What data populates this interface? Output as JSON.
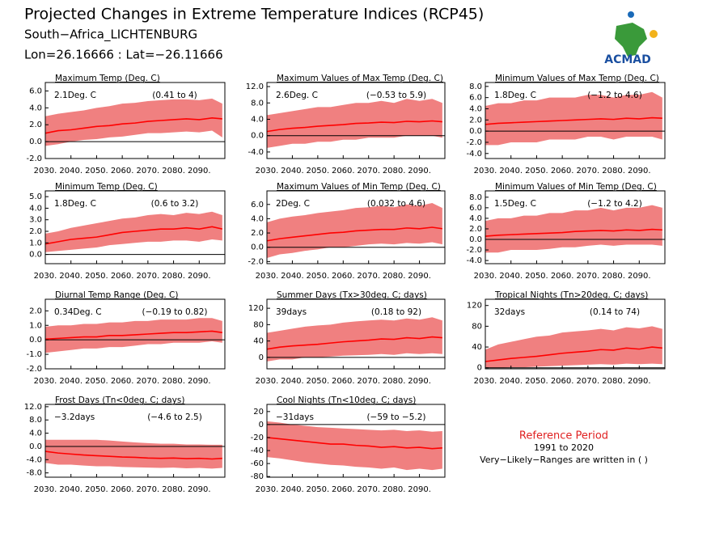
{
  "header": {
    "title": "Projected Changes in Extreme Temperature Indices (RCP45)",
    "subtitle": "South−Africa_LICHTENBURG",
    "location": "Lon=26.16666 : Lat=−26.11666",
    "logo": "ACMAD"
  },
  "notes": {
    "reference_title": "Reference Period",
    "reference_years": "1991 to 2020",
    "ranges_note": "Very−Likely−Ranges are written in ( )"
  },
  "chart_data": [
    {
      "type": "line",
      "title": "Maximum Temp (Deg. C)",
      "annotation": "2.1Deg. C",
      "range_label": "(0.41 to 4)",
      "x": [
        2030,
        2035,
        2040,
        2045,
        2050,
        2055,
        2060,
        2065,
        2070,
        2075,
        2080,
        2085,
        2090,
        2095,
        2099
      ],
      "values": [
        1.0,
        1.3,
        1.4,
        1.6,
        1.8,
        1.9,
        2.1,
        2.2,
        2.4,
        2.5,
        2.6,
        2.7,
        2.6,
        2.8,
        2.7
      ],
      "band": {
        "lower": [
          -0.5,
          -0.3,
          0,
          0.2,
          0.3,
          0.5,
          0.6,
          0.8,
          1.0,
          1.0,
          1.1,
          1.2,
          1.1,
          1.3,
          0.5
        ],
        "upper": [
          3.0,
          3.3,
          3.5,
          3.7,
          4.0,
          4.2,
          4.5,
          4.6,
          4.8,
          4.9,
          5.0,
          5.0,
          4.9,
          5.1,
          4.5
        ]
      },
      "xlim": [
        2030,
        2100
      ],
      "ylim": [
        -2,
        7
      ],
      "yticks": [
        {
          "value": -2,
          "label": "-2.0"
        },
        {
          "value": 0,
          "label": "0.0"
        },
        {
          "value": 2,
          "label": "2.0"
        },
        {
          "value": 4,
          "label": "4.0"
        },
        {
          "value": 6,
          "label": "6.0"
        }
      ]
    },
    {
      "type": "line",
      "title": "Maximum Values of Max Temp (Deg. C)",
      "annotation": "2.6Deg. C",
      "range_label": "(−0.53 to 5.9)",
      "x": [
        2030,
        2035,
        2040,
        2045,
        2050,
        2055,
        2060,
        2065,
        2070,
        2075,
        2080,
        2085,
        2090,
        2095,
        2099
      ],
      "values": [
        1.0,
        1.5,
        1.8,
        2.0,
        2.3,
        2.5,
        2.7,
        3.0,
        3.1,
        3.3,
        3.2,
        3.5,
        3.4,
        3.6,
        3.4
      ],
      "band": {
        "lower": [
          -3,
          -2.5,
          -2,
          -2,
          -1.5,
          -1.5,
          -1,
          -1,
          -0.5,
          -0.5,
          -0.5,
          0,
          0,
          0,
          -0.5
        ],
        "upper": [
          5,
          5.5,
          6,
          6.5,
          7,
          7,
          7.5,
          8,
          8,
          8.5,
          8,
          9,
          8.5,
          9,
          8
        ]
      },
      "xlim": [
        2030,
        2100
      ],
      "ylim": [
        -5.6,
        13
      ],
      "yticks": [
        {
          "value": -4,
          "label": "-4.0"
        },
        {
          "value": 0,
          "label": "0.0"
        },
        {
          "value": 4,
          "label": "4.0"
        },
        {
          "value": 8,
          "label": "8.0"
        },
        {
          "value": 12,
          "label": "12.0"
        }
      ]
    },
    {
      "type": "line",
      "title": "Minimum Values of Max Temp (Deg. C)",
      "annotation": "1.8Deg. C",
      "range_label": "(−1.2 to 4.6)",
      "x": [
        2030,
        2035,
        2040,
        2045,
        2050,
        2055,
        2060,
        2065,
        2070,
        2075,
        2080,
        2085,
        2090,
        2095,
        2099
      ],
      "values": [
        1.2,
        1.4,
        1.5,
        1.6,
        1.7,
        1.8,
        1.9,
        2.0,
        2.1,
        2.2,
        2.1,
        2.3,
        2.2,
        2.4,
        2.3
      ],
      "band": {
        "lower": [
          -2.5,
          -2.5,
          -2,
          -2,
          -2,
          -1.5,
          -1.5,
          -1.5,
          -1,
          -1,
          -1.5,
          -1,
          -1,
          -1,
          -1.5
        ],
        "upper": [
          4.5,
          5,
          5,
          5.5,
          5.5,
          6,
          6,
          6,
          6.5,
          6.5,
          6,
          6.5,
          6.5,
          7,
          6
        ]
      },
      "xlim": [
        2030,
        2100
      ],
      "ylim": [
        -4.9,
        8.7
      ],
      "yticks": [
        {
          "value": -4,
          "label": "-4.0"
        },
        {
          "value": -2,
          "label": "-2.0"
        },
        {
          "value": 0,
          "label": "0.0"
        },
        {
          "value": 2,
          "label": "2.0"
        },
        {
          "value": 4,
          "label": "4.0"
        },
        {
          "value": 6,
          "label": "6.0"
        },
        {
          "value": 8,
          "label": "8.0"
        }
      ]
    },
    {
      "type": "line",
      "title": "Minimum Temp (Deg. C)",
      "annotation": "1.8Deg. C",
      "range_label": "(0.6 to 3.2)",
      "x": [
        2030,
        2035,
        2040,
        2045,
        2050,
        2055,
        2060,
        2065,
        2070,
        2075,
        2080,
        2085,
        2090,
        2095,
        2099
      ],
      "values": [
        0.9,
        1.1,
        1.3,
        1.4,
        1.5,
        1.7,
        1.9,
        2.0,
        2.1,
        2.2,
        2.2,
        2.3,
        2.2,
        2.4,
        2.2
      ],
      "band": {
        "lower": [
          0.2,
          0.3,
          0.4,
          0.5,
          0.6,
          0.8,
          0.9,
          1.0,
          1.1,
          1.1,
          1.2,
          1.2,
          1.1,
          1.3,
          1.2
        ],
        "upper": [
          1.8,
          2.0,
          2.3,
          2.5,
          2.7,
          2.9,
          3.1,
          3.2,
          3.4,
          3.5,
          3.4,
          3.6,
          3.5,
          3.7,
          3.4
        ]
      },
      "xlim": [
        2030,
        2100
      ],
      "ylim": [
        -0.8,
        5.5
      ],
      "yticks": [
        {
          "value": 0,
          "label": "0.0"
        },
        {
          "value": 1,
          "label": "1.0"
        },
        {
          "value": 2,
          "label": "2.0"
        },
        {
          "value": 3,
          "label": "3.0"
        },
        {
          "value": 4,
          "label": "4.0"
        },
        {
          "value": 5,
          "label": "5.0"
        }
      ]
    },
    {
      "type": "line",
      "title": "Maximum Values of Min Temp (Deg. C)",
      "annotation": "2Deg. C",
      "range_label": "(0.032 to 4.6)",
      "x": [
        2030,
        2035,
        2040,
        2045,
        2050,
        2055,
        2060,
        2065,
        2070,
        2075,
        2080,
        2085,
        2090,
        2095,
        2099
      ],
      "values": [
        0.9,
        1.2,
        1.4,
        1.6,
        1.8,
        2.0,
        2.1,
        2.3,
        2.4,
        2.5,
        2.5,
        2.7,
        2.6,
        2.8,
        2.6
      ],
      "band": {
        "lower": [
          -1.5,
          -1,
          -0.8,
          -0.5,
          -0.3,
          0,
          0,
          0.2,
          0.4,
          0.5,
          0.4,
          0.6,
          0.5,
          0.7,
          0.4
        ],
        "upper": [
          3.5,
          4,
          4.3,
          4.5,
          4.8,
          5,
          5.2,
          5.5,
          5.6,
          5.8,
          5.6,
          6,
          5.8,
          6.2,
          5.5
        ]
      },
      "xlim": [
        2030,
        2100
      ],
      "ylim": [
        -2.3,
        7.9
      ],
      "yticks": [
        {
          "value": -2,
          "label": "-2.0"
        },
        {
          "value": 0,
          "label": "0.0"
        },
        {
          "value": 2,
          "label": "2.0"
        },
        {
          "value": 4,
          "label": "4.0"
        },
        {
          "value": 6,
          "label": "6.0"
        }
      ]
    },
    {
      "type": "line",
      "title": "Minimum Values of Min Temp (Deg. C)",
      "annotation": "1.5Deg. C",
      "range_label": "(−1.2 to 4.2)",
      "x": [
        2030,
        2035,
        2040,
        2045,
        2050,
        2055,
        2060,
        2065,
        2070,
        2075,
        2080,
        2085,
        2090,
        2095,
        2099
      ],
      "values": [
        0.6,
        0.8,
        0.9,
        1.0,
        1.1,
        1.2,
        1.3,
        1.5,
        1.6,
        1.7,
        1.6,
        1.8,
        1.7,
        1.9,
        1.8
      ],
      "band": {
        "lower": [
          -2.5,
          -2.5,
          -2,
          -2,
          -2,
          -1.8,
          -1.5,
          -1.5,
          -1.2,
          -1,
          -1.2,
          -1,
          -1,
          -1,
          -1.2
        ],
        "upper": [
          3.5,
          4,
          4,
          4.5,
          4.5,
          5,
          5,
          5.5,
          5.5,
          6,
          5.5,
          6,
          6,
          6.5,
          6
        ]
      },
      "xlim": [
        2030,
        2100
      ],
      "ylim": [
        -4.6,
        9.2
      ],
      "yticks": [
        {
          "value": -4,
          "label": "-4.0"
        },
        {
          "value": -2,
          "label": "-2.0"
        },
        {
          "value": 0,
          "label": "0.0"
        },
        {
          "value": 2,
          "label": "2.0"
        },
        {
          "value": 4,
          "label": "4.0"
        },
        {
          "value": 6,
          "label": "6.0"
        },
        {
          "value": 8,
          "label": "8.0"
        }
      ]
    },
    {
      "type": "line",
      "title": "Diurnal Temp Range (Deg. C)",
      "annotation": "0.34Deg. C",
      "range_label": "(−0.19 to 0.82)",
      "x": [
        2030,
        2035,
        2040,
        2045,
        2050,
        2055,
        2060,
        2065,
        2070,
        2075,
        2080,
        2085,
        2090,
        2095,
        2099
      ],
      "values": [
        0.05,
        0.1,
        0.15,
        0.2,
        0.2,
        0.3,
        0.3,
        0.35,
        0.4,
        0.45,
        0.5,
        0.5,
        0.55,
        0.6,
        0.5
      ],
      "band": {
        "lower": [
          -0.9,
          -0.8,
          -0.7,
          -0.6,
          -0.6,
          -0.5,
          -0.5,
          -0.4,
          -0.3,
          -0.3,
          -0.2,
          -0.2,
          -0.2,
          -0.1,
          -0.2
        ],
        "upper": [
          0.9,
          1.0,
          1.0,
          1.1,
          1.1,
          1.2,
          1.2,
          1.3,
          1.3,
          1.4,
          1.4,
          1.4,
          1.5,
          1.5,
          1.3
        ]
      },
      "xlim": [
        2030,
        2100
      ],
      "ylim": [
        -2,
        2.8
      ],
      "yticks": [
        {
          "value": -2,
          "label": "-2.0"
        },
        {
          "value": -1,
          "label": "-1.0"
        },
        {
          "value": 0,
          "label": "0.0"
        },
        {
          "value": 1,
          "label": "1.0"
        },
        {
          "value": 2,
          "label": "2.0"
        }
      ]
    },
    {
      "type": "line",
      "title": "Summer Days (Tx>30deg. C; days)",
      "annotation": "39days",
      "range_label": "(0.18 to 92)",
      "x": [
        2030,
        2035,
        2040,
        2045,
        2050,
        2055,
        2060,
        2065,
        2070,
        2075,
        2080,
        2085,
        2090,
        2095,
        2099
      ],
      "values": [
        20,
        25,
        28,
        30,
        32,
        35,
        38,
        40,
        42,
        45,
        44,
        48,
        46,
        50,
        48
      ],
      "band": {
        "lower": [
          -10,
          -5,
          -5,
          0,
          0,
          2,
          4,
          5,
          6,
          8,
          6,
          10,
          8,
          10,
          8
        ],
        "upper": [
          60,
          65,
          70,
          75,
          78,
          80,
          85,
          88,
          90,
          92,
          90,
          95,
          92,
          98,
          90
        ]
      },
      "xlim": [
        2030,
        2100
      ],
      "ylim": [
        -28,
        142
      ],
      "yticks": [
        0,
        40,
        80,
        120
      ]
    },
    {
      "type": "line",
      "title": "Tropical Nights (Tn>20deg. C; days)",
      "annotation": "32days",
      "range_label": "(0.14 to 74)",
      "x": [
        2030,
        2035,
        2040,
        2045,
        2050,
        2055,
        2060,
        2065,
        2070,
        2075,
        2080,
        2085,
        2090,
        2095,
        2099
      ],
      "values": [
        12,
        15,
        18,
        20,
        22,
        25,
        28,
        30,
        32,
        35,
        34,
        38,
        36,
        40,
        38
      ],
      "band": {
        "lower": [
          0,
          0,
          1,
          1,
          2,
          3,
          4,
          5,
          6,
          7,
          6,
          8,
          7,
          8,
          7
        ],
        "upper": [
          35,
          45,
          50,
          55,
          60,
          62,
          68,
          70,
          72,
          75,
          72,
          78,
          76,
          80,
          75
        ]
      },
      "xlim": [
        2030,
        2100
      ],
      "ylim": [
        -2,
        132
      ],
      "yticks": [
        0,
        40,
        80,
        120
      ]
    },
    {
      "type": "line",
      "title": "Frost Days (Tn<0deg. C; days)",
      "annotation": "−3.2days",
      "range_label": "(−4.6 to 2.5)",
      "x": [
        2030,
        2035,
        2040,
        2045,
        2050,
        2055,
        2060,
        2065,
        2070,
        2075,
        2080,
        2085,
        2090,
        2095,
        2099
      ],
      "values": [
        -1.5,
        -2,
        -2.3,
        -2.6,
        -2.8,
        -3,
        -3.2,
        -3.3,
        -3.5,
        -3.6,
        -3.5,
        -3.7,
        -3.6,
        -3.8,
        -3.6
      ],
      "band": {
        "lower": [
          -5,
          -5.5,
          -5.5,
          -5.8,
          -6,
          -6,
          -6.2,
          -6.3,
          -6.4,
          -6.5,
          -6.4,
          -6.6,
          -6.5,
          -6.7,
          -6.5
        ],
        "upper": [
          2,
          2,
          2,
          2,
          2,
          1.8,
          1.5,
          1.2,
          1,
          0.8,
          0.8,
          0.6,
          0.6,
          0.5,
          0.5
        ]
      },
      "xlim": [
        2030,
        2100
      ],
      "ylim": [
        -9.3,
        12.7
      ],
      "yticks": [
        {
          "value": -8,
          "label": "-8.0"
        },
        {
          "value": -4,
          "label": "-4.0"
        },
        {
          "value": 0,
          "label": "0.0"
        },
        {
          "value": 4,
          "label": "4.0"
        },
        {
          "value": 8,
          "label": "8.0"
        },
        {
          "value": 12,
          "label": "12.0"
        }
      ]
    },
    {
      "type": "line",
      "title": "Cool Nights (Tn<10deg. C; days)",
      "annotation": "−31days",
      "range_label": "(−59 to −5.2)",
      "x": [
        2030,
        2035,
        2040,
        2045,
        2050,
        2055,
        2060,
        2065,
        2070,
        2075,
        2080,
        2085,
        2090,
        2095,
        2099
      ],
      "values": [
        -20,
        -22,
        -24,
        -26,
        -28,
        -30,
        -30,
        -32,
        -33,
        -35,
        -34,
        -36,
        -35,
        -37,
        -36
      ],
      "band": {
        "lower": [
          -50,
          -52,
          -55,
          -58,
          -60,
          -62,
          -63,
          -65,
          -66,
          -68,
          -66,
          -70,
          -68,
          -70,
          -68
        ],
        "upper": [
          5,
          3,
          0,
          -2,
          -4,
          -5,
          -6,
          -7,
          -8,
          -9,
          -8,
          -10,
          -9,
          -11,
          -10
        ]
      },
      "xlim": [
        2030,
        2100
      ],
      "ylim": [
        -81,
        31
      ],
      "yticks": [
        -80,
        -60,
        -40,
        -20,
        0,
        20
      ]
    }
  ],
  "style": {
    "band_color": "#f08080",
    "line_color": "#ff0000",
    "xticks": [
      {
        "value": 2030,
        "label": "2030."
      },
      {
        "value": 2040,
        "label": "2040."
      },
      {
        "value": 2050,
        "label": "2050."
      },
      {
        "value": 2060,
        "label": "2060."
      },
      {
        "value": 2070,
        "label": "2070."
      },
      {
        "value": 2080,
        "label": "2080."
      },
      {
        "value": 2090,
        "label": "2090."
      }
    ]
  }
}
